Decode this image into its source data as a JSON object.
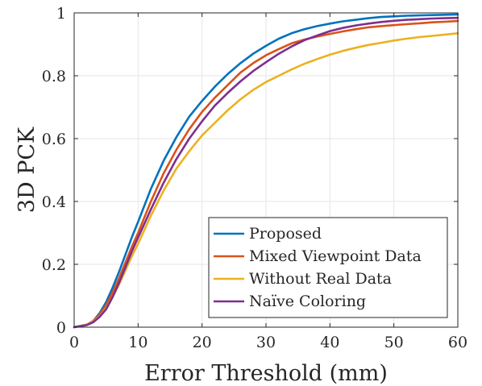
{
  "chart_data": {
    "type": "line",
    "title": "",
    "xlabel": "Error Threshold (mm)",
    "ylabel": "3D PCK",
    "xlim": [
      0,
      60
    ],
    "ylim": [
      0,
      1
    ],
    "xticks": [
      "0",
      "10",
      "20",
      "30",
      "40",
      "50",
      "60"
    ],
    "yticks": [
      "0",
      "0.2",
      "0.4",
      "0.6",
      "0.8",
      "1"
    ],
    "grid": true,
    "legend_position": "bottom-right",
    "x": [
      0,
      2,
      3,
      4,
      5,
      6,
      7,
      8,
      9,
      10,
      12,
      14,
      16,
      18,
      20,
      22,
      24,
      26,
      28,
      30,
      32,
      34,
      36,
      38,
      40,
      42,
      44,
      46,
      48,
      50,
      52,
      54,
      56,
      58,
      60
    ],
    "series": [
      {
        "name": "Proposed",
        "color": "#0072BD",
        "values": [
          0,
          0.008,
          0.02,
          0.045,
          0.08,
          0.125,
          0.175,
          0.23,
          0.285,
          0.335,
          0.44,
          0.53,
          0.605,
          0.67,
          0.72,
          0.765,
          0.805,
          0.84,
          0.87,
          0.895,
          0.918,
          0.935,
          0.948,
          0.958,
          0.966,
          0.973,
          0.978,
          0.983,
          0.987,
          0.989,
          0.991,
          0.992,
          0.993,
          0.994,
          0.995
        ]
      },
      {
        "name": "Mixed Viewpoint Data",
        "color": "#D95319",
        "values": [
          0,
          0.008,
          0.02,
          0.04,
          0.07,
          0.11,
          0.155,
          0.205,
          0.255,
          0.3,
          0.4,
          0.49,
          0.565,
          0.63,
          0.685,
          0.73,
          0.77,
          0.81,
          0.84,
          0.865,
          0.885,
          0.903,
          0.915,
          0.925,
          0.933,
          0.941,
          0.948,
          0.954,
          0.958,
          0.961,
          0.964,
          0.967,
          0.97,
          0.972,
          0.974
        ]
      },
      {
        "name": "Without Real Data",
        "color": "#EDB120",
        "values": [
          0,
          0.008,
          0.018,
          0.035,
          0.06,
          0.095,
          0.135,
          0.18,
          0.225,
          0.265,
          0.355,
          0.435,
          0.505,
          0.56,
          0.61,
          0.65,
          0.69,
          0.725,
          0.755,
          0.78,
          0.8,
          0.82,
          0.838,
          0.853,
          0.867,
          0.879,
          0.889,
          0.898,
          0.905,
          0.912,
          0.918,
          0.923,
          0.927,
          0.931,
          0.935
        ]
      },
      {
        "name": "Naïve Coloring",
        "color": "#7E2F8E",
        "values": [
          0,
          0.007,
          0.016,
          0.033,
          0.057,
          0.095,
          0.14,
          0.19,
          0.24,
          0.285,
          0.375,
          0.46,
          0.535,
          0.6,
          0.655,
          0.705,
          0.745,
          0.782,
          0.815,
          0.843,
          0.87,
          0.893,
          0.913,
          0.928,
          0.942,
          0.952,
          0.96,
          0.966,
          0.971,
          0.975,
          0.978,
          0.98,
          0.982,
          0.983,
          0.984
        ]
      }
    ]
  }
}
